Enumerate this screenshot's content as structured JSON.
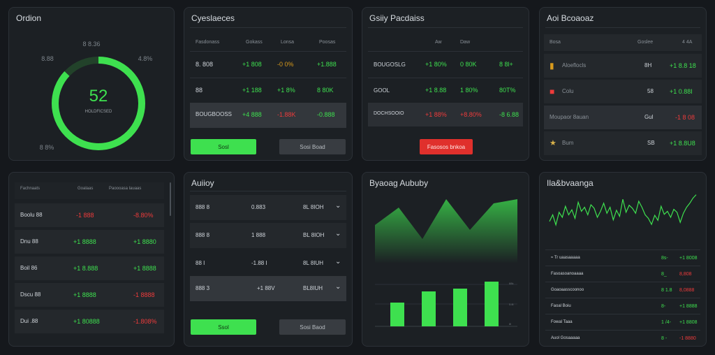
{
  "order": {
    "title": "Ordion",
    "value": "52",
    "sub": "HOLDFICSED",
    "fraction": 0.87,
    "labels": [
      "8 8.36",
      "8.88",
      "4.8%",
      "8 8%"
    ],
    "colors": {
      "ring": "#3ee04f",
      "track": "#22422a"
    }
  },
  "positions": {
    "title": "Cyeslaeces",
    "headers": [
      "Fasdonass",
      "Gokass",
      "Lonsa",
      "Poosas"
    ],
    "rows": [
      {
        "name": "8. 808",
        "a": "+1 808",
        "b": "-0 0%",
        "c": "+1.888"
      },
      {
        "name": "88",
        "a": "+1 188",
        "b": "+1 8%",
        "c": "8 80K"
      },
      {
        "name": "BOUGBOOSS",
        "a": "+4 888",
        "b": "-1.88K",
        "c": "-0.888"
      }
    ],
    "btn_primary": "Sosl",
    "btn_secondary": "Sosi  Boad"
  },
  "gainers": {
    "title": "Gsiiy Pacdaiss",
    "headers": [
      "Aw",
      "Daw"
    ],
    "rows": [
      {
        "name": "BOUGOSLG",
        "a": "+1 80%",
        "b": "0 80K",
        "c": "8 8l+"
      },
      {
        "name": "GOOL",
        "a": "+1 8.88",
        "b": "1 80%",
        "c": "80T%"
      },
      {
        "name": "DOCHSOOIO",
        "a": "+1 88%",
        "b": "+8.80%",
        "c": "-8 6.88"
      }
    ],
    "btn": "Fasosos bnkoa"
  },
  "balances": {
    "title": "Aoi Bcoaoaz",
    "headers": [
      "Bosa",
      "Goslee",
      "4 4A"
    ],
    "rows": [
      {
        "icon": "amber-chart-icon",
        "name": "Aloeflocls",
        "a": "8H",
        "b": "+1 8.8 18"
      },
      {
        "icon": "red-box-icon",
        "name": "Colu",
        "a": "58",
        "b": "+1 0.88I"
      },
      {
        "icon": "none",
        "name": "Moupaor 8auan",
        "a": "Gul",
        "b": "-1 8 08"
      },
      {
        "icon": "gold-coin-icon",
        "name": "Bum",
        "a": "SB",
        "b": "+1 8.8U8"
      }
    ]
  },
  "watchlist": {
    "headers": [
      "Fachnaats",
      "Goalaas",
      "Paoooasa lauaas"
    ],
    "rows": [
      {
        "name": "Boolu 88",
        "a": "-1 888",
        "b": "-8.80%"
      },
      {
        "name": "Dnu 88",
        "a": "+1 8888",
        "b": "+1 8880"
      },
      {
        "name": "Boil 86",
        "a": "+1 8.888",
        "b": "+1 8888"
      },
      {
        "name": "Dscu 88",
        "a": "+1 8888",
        "b": "-1 8888"
      },
      {
        "name": "Dui .88",
        "a": "+1 80888",
        "b": "-1.808%"
      }
    ]
  },
  "activity": {
    "title": "Auiioy",
    "rows": [
      {
        "a": "888 8",
        "b": "0.883",
        "c": "8L 8IOH"
      },
      {
        "a": "888 8",
        "b": "1 888",
        "c": "BL 8IOH"
      },
      {
        "a": "88 I",
        "b": "-1.88 I",
        "c": "8L 8IUH"
      },
      {
        "a": "888 3",
        "b": "+1 88V",
        "c": "BL8IUH"
      }
    ],
    "btn_primary": "Ssol",
    "btn_secondary": "Sosi  Baod"
  },
  "spending": {
    "title": "Byaoag Aububy",
    "area": [
      0.55,
      0.8,
      0.35,
      0.92,
      0.48,
      0.86,
      0.92
    ],
    "bars": [
      0.34,
      0.5,
      0.54,
      0.64
    ],
    "ticks": [
      "88k",
      "5.8l",
      "8l"
    ],
    "colors": {
      "accent": "#3ee04f"
    }
  },
  "history": {
    "title": "Ila&bvaanga",
    "spark": [
      0.42,
      0.55,
      0.35,
      0.6,
      0.5,
      0.72,
      0.55,
      0.65,
      0.48,
      0.8,
      0.62,
      0.7,
      0.55,
      0.75,
      0.68,
      0.5,
      0.62,
      0.78,
      0.58,
      0.7,
      0.45,
      0.64,
      0.52,
      0.86,
      0.6,
      0.74,
      0.68,
      0.58,
      0.82,
      0.7,
      0.55,
      0.48,
      0.36,
      0.54,
      0.44,
      0.72,
      0.56,
      0.62,
      0.5,
      0.66,
      0.6,
      0.4,
      0.58,
      0.7,
      0.78,
      0.88,
      0.95
    ],
    "rows": [
      {
        "name": "≈ Tr  uaasaaaaa",
        "a": "8s-",
        "b": "+1 8008"
      },
      {
        "name": "Fasoasoanoaaaa",
        "a": "8_",
        "b": "8,808"
      },
      {
        "name": "Goaoaasscoonoo",
        "a": "8 1.8",
        "b": "8,0888"
      },
      {
        "name": "Faoal Boiu",
        "a": "8-",
        "b": "+1 8888"
      },
      {
        "name": "Fowal Taaa",
        "a": "1 /4-",
        "b": "+1 8808"
      },
      {
        "name": "Auol Gosaaaaa",
        "a": "8 -",
        "b": "-1 8880"
      }
    ]
  }
}
